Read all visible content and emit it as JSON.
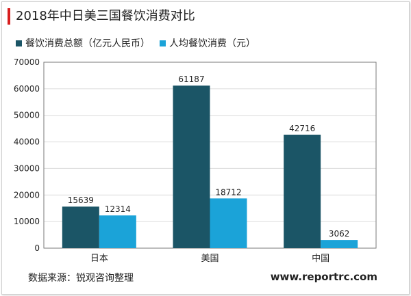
{
  "title": "2018年中日美三国餐饮消费对比",
  "source": "数据来源：锐观咨询整理",
  "website": "www.reportrc.com",
  "colors": {
    "series_total": "#1b5566",
    "series_percapita": "#1ba3d8",
    "title_accent": "#d81e1e",
    "plot_border": "#7a7a7a",
    "grid": "#dcdcdc"
  },
  "chart_data": {
    "type": "bar",
    "title": "2018年中日美三国餐饮消费对比",
    "categories": [
      "日本",
      "美国",
      "中国"
    ],
    "series": [
      {
        "name": "餐饮消费总额（亿元人民币）",
        "values": [
          15639,
          61187,
          42716
        ]
      },
      {
        "name": "人均餐饮消费（元）",
        "values": [
          12314,
          18712,
          3062
        ]
      }
    ],
    "ylim": [
      0,
      70000
    ],
    "yticks": [
      0,
      10000,
      20000,
      30000,
      40000,
      50000,
      60000,
      70000
    ],
    "grid": true,
    "legend": "top-left",
    "data_labels": true
  }
}
